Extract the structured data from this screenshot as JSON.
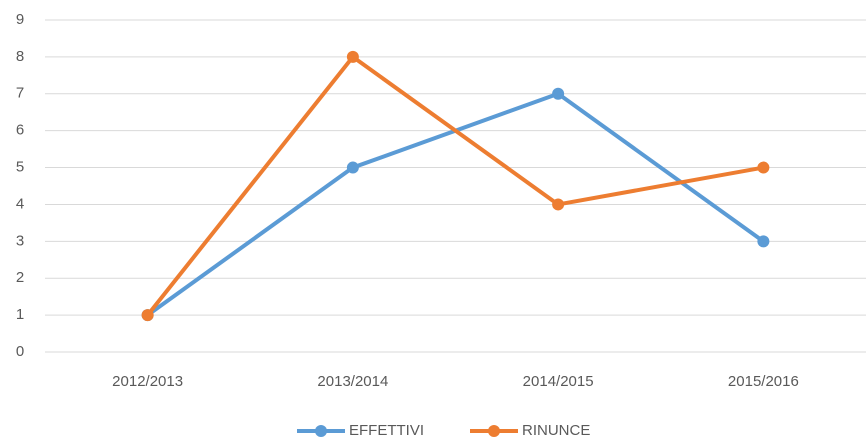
{
  "chart_data": {
    "type": "line",
    "categories": [
      "2012/2013",
      "2013/2014",
      "2014/2015",
      "2015/2016"
    ],
    "series": [
      {
        "name": "EFFETTIVI",
        "color": "#5b9bd5",
        "values": [
          1,
          5,
          7,
          3
        ]
      },
      {
        "name": "RINUNCE",
        "color": "#ed7d31",
        "values": [
          1,
          8,
          4,
          5
        ]
      }
    ],
    "ylim": [
      0,
      9
    ],
    "yticks": [
      0,
      1,
      2,
      3,
      4,
      5,
      6,
      7,
      8,
      9
    ],
    "grid": true,
    "legend": "bottom"
  }
}
